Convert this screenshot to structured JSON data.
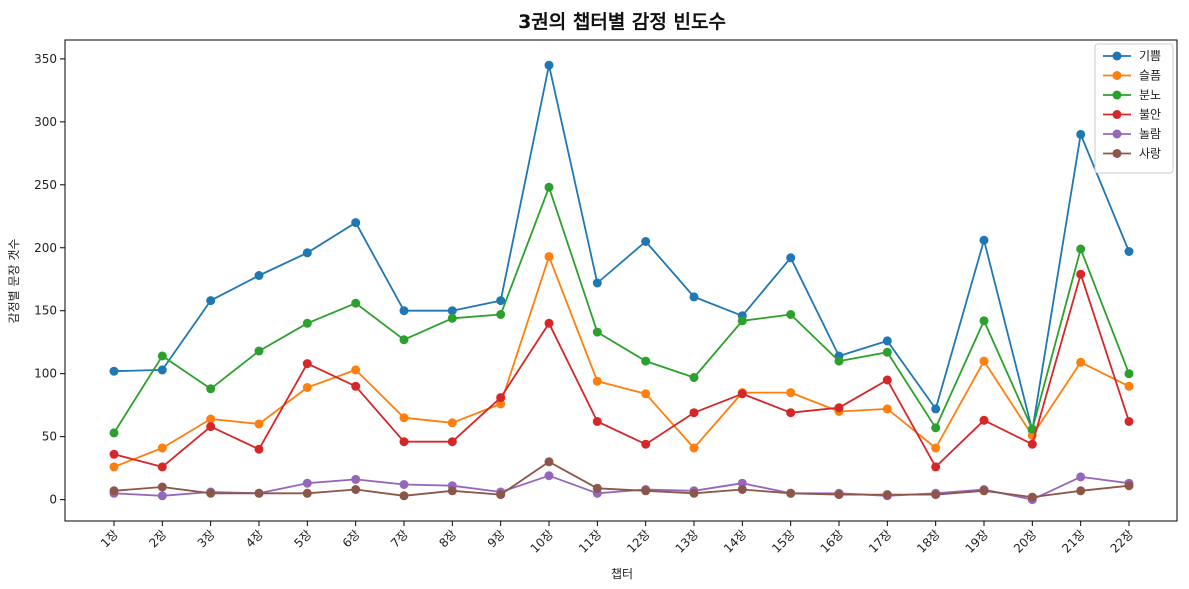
{
  "chart_data": {
    "type": "line",
    "title": "3권의 챕터별 감정 빈도수",
    "xlabel": "챕터",
    "ylabel": "감정별 문장 갯수",
    "categories": [
      "1장",
      "2장",
      "3장",
      "4장",
      "5장",
      "6장",
      "7장",
      "8장",
      "9장",
      "10장",
      "11장",
      "12장",
      "13장",
      "14장",
      "15장",
      "16장",
      "17장",
      "18장",
      "19장",
      "20장",
      "21장",
      "22장"
    ],
    "ylim": [
      -17,
      365
    ],
    "yticks": [
      0,
      50,
      100,
      150,
      200,
      250,
      300,
      350
    ],
    "grid": false,
    "legend_position": "top-right",
    "markers": "circle",
    "series": [
      {
        "name": "기쁨",
        "color": "#1f77b4",
        "values": [
          102,
          103,
          158,
          178,
          196,
          220,
          150,
          150,
          158,
          345,
          172,
          205,
          161,
          146,
          192,
          114,
          126,
          72,
          206,
          55,
          290,
          197
        ]
      },
      {
        "name": "슬픔",
        "color": "#ff7f0e",
        "values": [
          26,
          41,
          64,
          60,
          89,
          103,
          65,
          61,
          76,
          193,
          94,
          84,
          41,
          85,
          85,
          70,
          72,
          41,
          110,
          51,
          109,
          90
        ]
      },
      {
        "name": "분노",
        "color": "#2ca02c",
        "values": [
          53,
          114,
          88,
          118,
          140,
          156,
          127,
          144,
          147,
          248,
          133,
          110,
          97,
          142,
          147,
          110,
          117,
          57,
          142,
          56,
          199,
          100
        ]
      },
      {
        "name": "불안",
        "color": "#d62728",
        "values": [
          36,
          26,
          58,
          40,
          108,
          90,
          46,
          46,
          81,
          140,
          62,
          44,
          69,
          84,
          69,
          73,
          95,
          26,
          63,
          44,
          179,
          62
        ]
      },
      {
        "name": "놀람",
        "color": "#9467bd",
        "values": [
          5,
          3,
          6,
          5,
          13,
          16,
          12,
          11,
          6,
          19,
          5,
          8,
          7,
          13,
          5,
          5,
          3,
          5,
          8,
          0,
          18,
          13
        ]
      },
      {
        "name": "사랑",
        "color": "#8c564b",
        "values": [
          7,
          10,
          5,
          5,
          5,
          8,
          3,
          7,
          4,
          30,
          9,
          7,
          5,
          8,
          5,
          4,
          4,
          4,
          7,
          2,
          7,
          11
        ]
      }
    ]
  }
}
